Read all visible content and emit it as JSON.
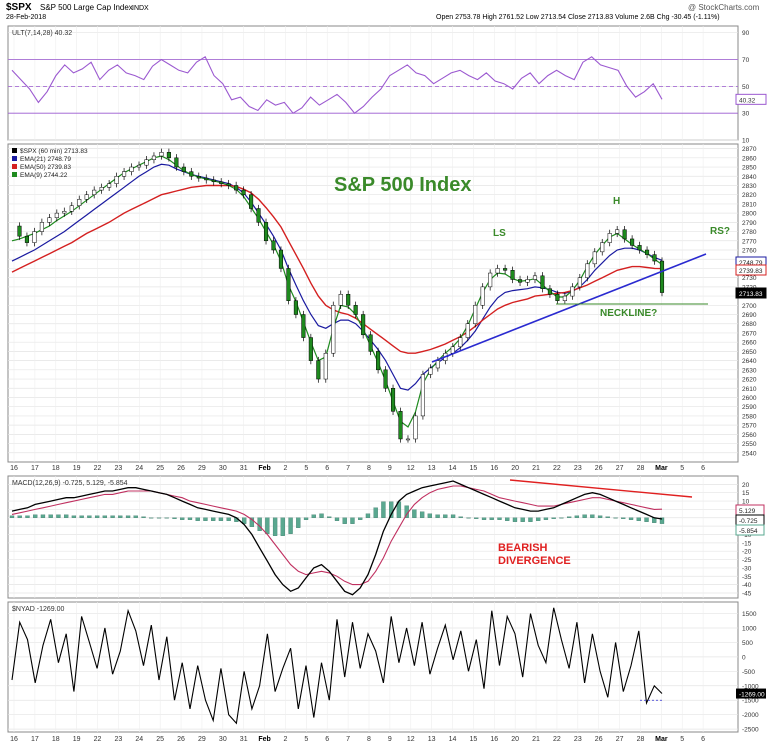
{
  "header": {
    "symbol": "$SPX",
    "name": "S&P 500 Large Cap Index",
    "exchange": "INDX",
    "date": "28-Feb-2018",
    "quote": "Open 2753.78  High 2761.52  Low 2713.54  Close 2713.83  Volume 2.6B  Chg -30.45 (-1.11%)",
    "watermark": "@ StockCharts.com"
  },
  "colors": {
    "ult": "#9b59d0",
    "ema21": "#1a1aa0",
    "ema50": "#d42020",
    "ema9": "#1e8a1e",
    "annotation": "#3a8a2a",
    "trendline": "#2a2ad0",
    "macd_sig": "#c03060",
    "divergence": "#e02020",
    "hist": "#5aa890"
  },
  "chart_data": [
    {
      "type": "line",
      "panel": "ULT",
      "legend": "ULT(7,14,28) 40.32",
      "ylim": [
        10,
        95
      ],
      "yticks": [
        10,
        30,
        50,
        70,
        90
      ],
      "reference_lines": [
        30,
        50,
        70
      ],
      "last_value_label": "40.32",
      "series": [
        {
          "values": [
            62,
            55,
            48,
            38,
            46,
            58,
            66,
            60,
            63,
            68,
            55,
            62,
            66,
            60,
            58,
            55,
            65,
            70,
            66,
            62,
            60,
            68,
            72,
            58,
            52,
            40,
            42,
            35,
            32,
            40,
            36,
            38,
            30,
            34,
            42,
            36,
            40,
            44,
            38,
            30,
            35,
            42,
            48,
            58,
            62,
            66,
            60,
            58,
            52,
            56,
            60,
            62,
            58,
            55,
            60,
            54,
            52,
            48,
            56,
            60,
            52,
            58,
            62,
            58,
            55,
            68,
            72,
            66,
            64,
            62,
            50,
            42,
            46,
            52,
            40.32
          ]
        }
      ]
    },
    {
      "type": "line",
      "panel": "price",
      "title": "S&P 500 Index",
      "legend": [
        "$SPX (60 min) 2713.83",
        "EMA(21) 2748.79",
        "EMA(50) 2739.83",
        "EMA(9) 2744.22"
      ],
      "ylim": [
        2530,
        2875
      ],
      "yticks": [
        2540,
        2550,
        2560,
        2570,
        2580,
        2590,
        2600,
        2610,
        2620,
        2630,
        2640,
        2650,
        2660,
        2670,
        2680,
        2690,
        2700,
        2710,
        2720,
        2730,
        2740,
        2750,
        2760,
        2770,
        2780,
        2790,
        2800,
        2810,
        2820,
        2830,
        2840,
        2850,
        2860,
        2870
      ],
      "last_value_labels": [
        "2748.79",
        "2739.83",
        "2713.83"
      ],
      "series": [
        {
          "name": "$SPX (60 min)",
          "values": [
            2786,
            2775,
            2768,
            2780,
            2790,
            2795,
            2800,
            2802,
            2808,
            2815,
            2820,
            2825,
            2828,
            2832,
            2840,
            2845,
            2850,
            2852,
            2858,
            2862,
            2866,
            2860,
            2850,
            2845,
            2840,
            2838,
            2836,
            2834,
            2832,
            2830,
            2825,
            2820,
            2805,
            2790,
            2770,
            2760,
            2740,
            2705,
            2690,
            2665,
            2640,
            2620,
            2648,
            2700,
            2712,
            2700,
            2690,
            2668,
            2650,
            2630,
            2610,
            2585,
            2555,
            2555,
            2580,
            2625,
            2632,
            2640,
            2648,
            2655,
            2665,
            2680,
            2700,
            2720,
            2735,
            2740,
            2738,
            2728,
            2725,
            2728,
            2732,
            2718,
            2712,
            2705,
            2710,
            2720,
            2730,
            2745,
            2758,
            2768,
            2778,
            2782,
            2772,
            2765,
            2760,
            2755,
            2748,
            2713.83
          ]
        },
        {
          "name": "EMA(21)",
          "values": [
            2748,
            2752,
            2756,
            2760,
            2765,
            2770,
            2775,
            2780,
            2786,
            2792,
            2798,
            2804,
            2810,
            2816,
            2822,
            2828,
            2834,
            2840,
            2845,
            2850,
            2853,
            2852,
            2848,
            2845,
            2842,
            2840,
            2838,
            2836,
            2834,
            2832,
            2828,
            2822,
            2812,
            2800,
            2788,
            2775,
            2760,
            2740,
            2722,
            2705,
            2690,
            2678,
            2675,
            2680,
            2684,
            2684,
            2680,
            2672,
            2662,
            2652,
            2640,
            2625,
            2610,
            2608,
            2615,
            2625,
            2632,
            2638,
            2643,
            2648,
            2654,
            2662,
            2672,
            2685,
            2698,
            2708,
            2714,
            2716,
            2717,
            2718,
            2720,
            2719,
            2717,
            2714,
            2713,
            2715,
            2720,
            2728,
            2738,
            2746,
            2754,
            2760,
            2762,
            2762,
            2760,
            2756,
            2752,
            2748.79
          ]
        },
        {
          "name": "EMA(50)",
          "values": [
            2736,
            2740,
            2744,
            2748,
            2752,
            2756,
            2760,
            2764,
            2768,
            2773,
            2778,
            2782,
            2786,
            2790,
            2795,
            2800,
            2804,
            2808,
            2812,
            2816,
            2820,
            2822,
            2824,
            2826,
            2828,
            2829,
            2830,
            2830,
            2830,
            2830,
            2829,
            2826,
            2822,
            2815,
            2806,
            2796,
            2785,
            2770,
            2755,
            2740,
            2724,
            2710,
            2700,
            2695,
            2692,
            2690,
            2686,
            2680,
            2674,
            2668,
            2662,
            2656,
            2650,
            2648,
            2648,
            2650,
            2652,
            2655,
            2658,
            2662,
            2666,
            2671,
            2677,
            2684,
            2690,
            2696,
            2700,
            2703,
            2705,
            2707,
            2710,
            2711,
            2712,
            2713,
            2714,
            2716,
            2719,
            2722,
            2726,
            2730,
            2734,
            2738,
            2740,
            2742,
            2742,
            2741,
            2740,
            2739.83
          ]
        },
        {
          "name": "EMA(9)",
          "values": [
            2770,
            2772,
            2775,
            2778,
            2782,
            2786,
            2792,
            2797,
            2802,
            2808,
            2814,
            2820,
            2826,
            2832,
            2838,
            2844,
            2848,
            2852,
            2856,
            2860,
            2862,
            2858,
            2852,
            2846,
            2842,
            2839,
            2837,
            2835,
            2833,
            2830,
            2826,
            2818,
            2806,
            2794,
            2780,
            2766,
            2748,
            2722,
            2704,
            2682,
            2660,
            2640,
            2644,
            2675,
            2700,
            2698,
            2690,
            2674,
            2656,
            2638,
            2618,
            2596,
            2574,
            2568,
            2584,
            2615,
            2630,
            2640,
            2648,
            2655,
            2664,
            2678,
            2696,
            2714,
            2728,
            2735,
            2734,
            2729,
            2726,
            2727,
            2729,
            2722,
            2715,
            2709,
            2709,
            2716,
            2727,
            2742,
            2755,
            2765,
            2774,
            2778,
            2772,
            2766,
            2761,
            2756,
            2750,
            2744.22
          ]
        }
      ],
      "annotations": [
        "S&P 500 Index",
        "LS",
        "H",
        "RS?",
        "NECKLINE?"
      ]
    },
    {
      "type": "line",
      "panel": "MACD",
      "legend": "MACD(12,26,9) -0.725, 5.129, -5.854",
      "ylim": [
        -48,
        25
      ],
      "yticks": [
        -45,
        -40,
        -35,
        -30,
        -25,
        -20,
        -15,
        -10,
        -5,
        0,
        5,
        10,
        15,
        20
      ],
      "last_value_labels": [
        "5.129",
        "-0.725",
        "-5.854"
      ],
      "annotations": [
        "BEARISH DIVERGENCE"
      ],
      "series": [
        {
          "name": "MACD",
          "values": [
            4,
            5,
            6,
            8,
            9,
            10,
            11,
            12,
            12,
            13,
            14,
            15,
            16,
            16,
            17,
            18,
            18,
            17,
            16,
            15,
            14,
            12,
            10,
            8,
            6,
            5,
            4,
            3,
            2,
            0,
            -4,
            -10,
            -18,
            -26,
            -34,
            -40,
            -44,
            -42,
            -36,
            -30,
            -28,
            -32,
            -38,
            -44,
            -46,
            -42,
            -34,
            -22,
            -8,
            2,
            10,
            14,
            16,
            18,
            19,
            20,
            21,
            22,
            20,
            18,
            16,
            14,
            12,
            10,
            8,
            6,
            5,
            4,
            4,
            5,
            6,
            8,
            10,
            12,
            14,
            15,
            14,
            12,
            10,
            8,
            6,
            4,
            2,
            0,
            -0.725
          ]
        },
        {
          "name": "Signal",
          "values": [
            2,
            3,
            4,
            5,
            6,
            7,
            8,
            9,
            10,
            11,
            12,
            13,
            14,
            14,
            15,
            16,
            16,
            16,
            16,
            15,
            14,
            13,
            12,
            10,
            9,
            8,
            7,
            6,
            5,
            4,
            2,
            -1,
            -5,
            -10,
            -16,
            -22,
            -28,
            -32,
            -34,
            -33,
            -32,
            -33,
            -35,
            -38,
            -40,
            -40,
            -38,
            -32,
            -24,
            -14,
            -6,
            2,
            8,
            12,
            15,
            17,
            18,
            19,
            19,
            18,
            17,
            16,
            14,
            12,
            11,
            10,
            9,
            8,
            7,
            7,
            7,
            8,
            9,
            10,
            11,
            12,
            12,
            11,
            10,
            9,
            8,
            7,
            6,
            5,
            5.129
          ]
        }
      ]
    },
    {
      "type": "line",
      "panel": "NYAD",
      "legend": "$NYAD -1269.00",
      "ylim": [
        -2600,
        1900
      ],
      "yticks": [
        -2500,
        -2000,
        -1500,
        -1000,
        -500,
        0,
        500,
        1000,
        1500
      ],
      "last_value_label": "-1269.00",
      "series": [
        {
          "values": [
            -800,
            1200,
            600,
            -900,
            400,
            1300,
            -200,
            800,
            -1200,
            1400,
            500,
            -400,
            1000,
            -600,
            200,
            1600,
            900,
            -300,
            1100,
            -800,
            700,
            -1500,
            -200,
            -1800,
            -300,
            -1500,
            -2200,
            -400,
            -2000,
            -2300,
            -500,
            -1800,
            -1000,
            800,
            -1200,
            -400,
            300,
            -1800,
            -300,
            -2100,
            -200,
            -1500,
            1300,
            -700,
            1200,
            -400,
            800,
            200,
            -900,
            1400,
            -200,
            1000,
            -300,
            1200,
            -600,
            300,
            1100,
            -100,
            900,
            -500,
            600,
            -1100,
            1600,
            -300,
            1400,
            800,
            -700,
            1500,
            400,
            -200,
            1700,
            600,
            -400,
            1200,
            -900,
            800,
            -500,
            -1400,
            500,
            -1200,
            -300,
            900,
            -1600,
            -1000,
            -1269
          ]
        }
      ]
    }
  ],
  "x_axis": {
    "labels": [
      "16",
      "17",
      "18",
      "19",
      "22",
      "23",
      "24",
      "25",
      "26",
      "29",
      "30",
      "31",
      "Feb",
      "2",
      "5",
      "6",
      "7",
      "8",
      "9",
      "12",
      "13",
      "14",
      "15",
      "16",
      "20",
      "21",
      "22",
      "23",
      "26",
      "27",
      "28",
      "Mar",
      "5",
      "6"
    ]
  }
}
